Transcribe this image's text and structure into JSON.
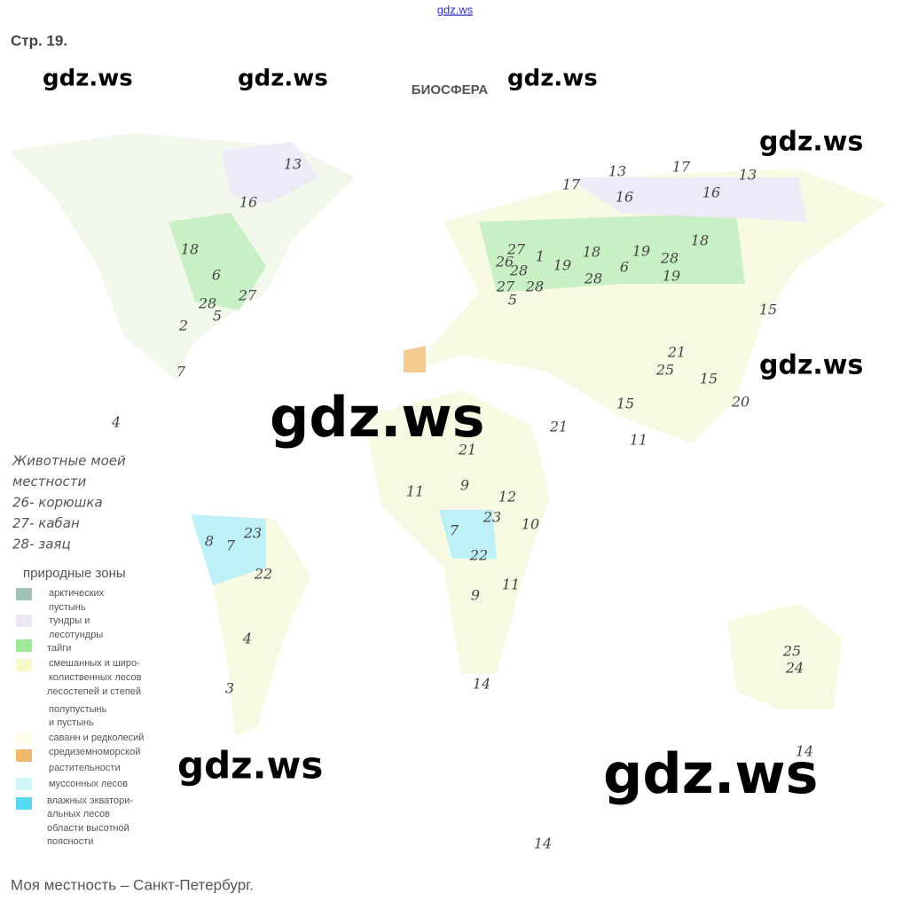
{
  "header": {
    "link": "gdz.ws",
    "page": "Стр. 19."
  },
  "title": "БИОСФЕРА",
  "watermarks": [
    "gdz.ws",
    "gdz.ws",
    "gdz.ws",
    "gdz.ws",
    "gdz.ws",
    "gdz.ws",
    "gdz.ws",
    "gdz.ws"
  ],
  "map_labels": [
    "13",
    "16",
    "18",
    "6",
    "27",
    "28",
    "5",
    "2",
    "7",
    "4",
    "17",
    "13",
    "17",
    "16",
    "16",
    "13",
    "27",
    "26",
    "28",
    "1",
    "19",
    "18",
    "19",
    "18",
    "28",
    "6",
    "28",
    "19",
    "27",
    "28",
    "5",
    "15",
    "21",
    "25",
    "15",
    "20",
    "15",
    "21",
    "11",
    "21",
    "9",
    "11",
    "12",
    "23",
    "10",
    "7",
    "22",
    "11",
    "9",
    "14",
    "8",
    "7",
    "23",
    "22",
    "4",
    "3",
    "25",
    "24",
    "14",
    "14"
  ],
  "notes": [
    "Животные моей",
    "местности",
    "26- корюшка",
    "27- кабан",
    "28- заяц"
  ],
  "legend": {
    "title": "природные зоны",
    "lines": [
      "арктических",
      "пустынь",
      "тундры и",
      "лесотундры",
      "тайги",
      "смешанных и широ-",
      "колиственных лесов",
      "лесостепей и степей",
      "полупустынь",
      "и пустынь",
      "саванн и редколесий",
      "средиземноморской",
      "растительности",
      "муссонных лесов",
      "влажных экватори-",
      "альных лесов",
      "области высотной",
      "поясности"
    ]
  },
  "footer": "Моя местность – Санкт-Петербург."
}
